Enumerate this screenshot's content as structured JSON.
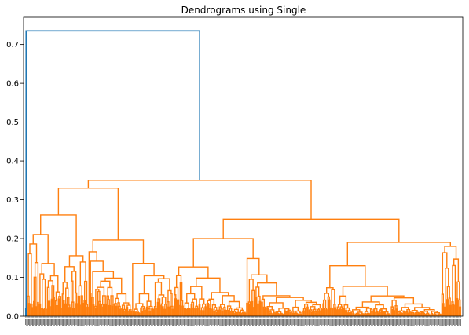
{
  "chart_data": {
    "type": "dendrogram",
    "title": "Dendrograms using Single",
    "xlabel": "",
    "ylabel": "",
    "ylim": [
      0,
      0.77
    ],
    "yticks": [
      0.0,
      0.1,
      0.2,
      0.3,
      0.4,
      0.5,
      0.6,
      0.7
    ],
    "ytick_labels": [
      "0.0",
      "0.1",
      "0.2",
      "0.3",
      "0.4",
      "0.5",
      "0.6",
      "0.7"
    ],
    "leaf_count": 440,
    "colors": {
      "cluster_main": "#ff7f0e",
      "cluster_outlier": "#1f77b4",
      "above_threshold": "#1f77b4"
    },
    "outlier_leaf_count": 2,
    "top_merge_height": 0.735,
    "merge_heights": [
      0.735,
      0.35,
      0.34,
      0.33,
      0.32,
      0.31,
      0.3,
      0.29,
      0.27,
      0.26,
      0.255,
      0.25,
      0.22,
      0.2,
      0.19,
      0.18,
      0.16,
      0.155,
      0.14,
      0.13,
      0.12,
      0.1,
      0.095,
      0.09,
      0.08,
      0.06,
      0.05,
      0.04
    ]
  }
}
